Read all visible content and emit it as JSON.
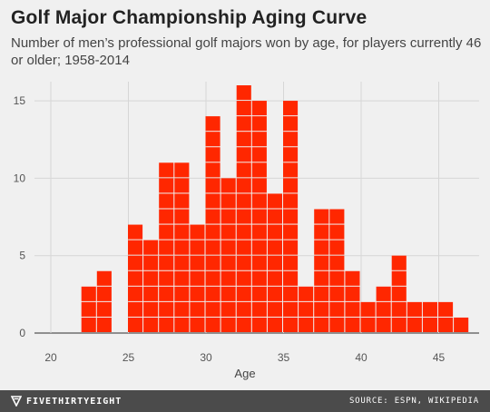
{
  "header": {
    "title": "Golf Major Championship Aging Curve",
    "subtitle": "Number of men’s professional golf majors won by age, for players currently 46 or older; 1958-2014"
  },
  "footer": {
    "brand": "FIVETHIRTYEIGHT",
    "source": "SOURCE: ESPN, WIKIPEDIA"
  },
  "colors": {
    "bar": "#ff2700",
    "grid": "#d6d6d6",
    "baseline": "#555555"
  },
  "chart_data": {
    "type": "bar",
    "title": "Golf Major Championship Aging Curve",
    "subtitle": "Number of men’s professional golf majors won by age, for players currently 46 or older; 1958-2014",
    "xlabel": "Age",
    "ylabel": "",
    "x": [
      20,
      21,
      22,
      23,
      24,
      25,
      26,
      27,
      28,
      29,
      30,
      31,
      32,
      33,
      34,
      35,
      36,
      37,
      38,
      39,
      40,
      41,
      42,
      43,
      44,
      45,
      46
    ],
    "values": [
      0,
      0,
      3,
      4,
      0,
      7,
      6,
      11,
      11,
      7,
      14,
      10,
      16,
      15,
      9,
      15,
      3,
      8,
      8,
      4,
      2,
      3,
      5,
      2,
      2,
      2,
      1
    ],
    "xticks": [
      "20",
      "25",
      "30",
      "35",
      "40",
      "45"
    ],
    "yticks": [
      "0",
      "5",
      "10",
      "15"
    ],
    "xlim": [
      19,
      47
    ],
    "ylim": [
      0,
      16
    ],
    "grid": true,
    "style": "unit blocks, one square per major"
  }
}
